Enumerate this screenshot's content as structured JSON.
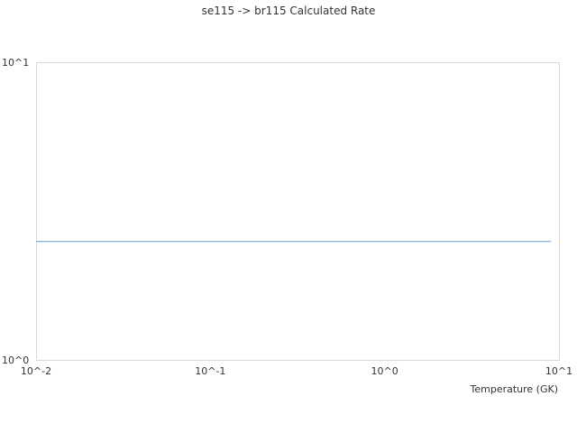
{
  "chart_data": {
    "type": "line",
    "title": "se115 -> br115 Calculated Rate",
    "xlabel": "Temperature (GK)",
    "ylabel": "",
    "x_scale": "log",
    "y_scale": "log",
    "xlim": [
      0.01,
      10
    ],
    "ylim": [
      1,
      10
    ],
    "x_tick_labels": [
      "10^-2",
      "10^-1",
      "10^0",
      "10^1"
    ],
    "y_tick_labels": [
      "10^0",
      "10^1"
    ],
    "grid": false,
    "series": [
      {
        "x": [
          0.01,
          9
        ],
        "y": [
          2.5,
          2.5
        ],
        "color": "#5b9bd5"
      }
    ],
    "frame_color": "#d9d9d9"
  }
}
